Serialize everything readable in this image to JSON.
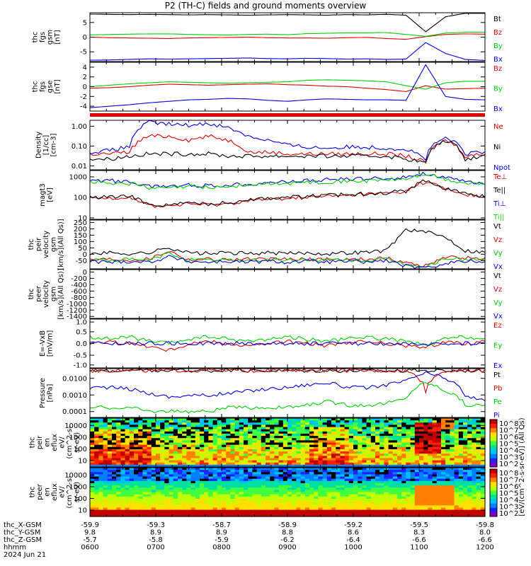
{
  "title": "P2 (TH-C) fields and ground moments overview",
  "colors": {
    "black": "#000000",
    "red": "#e00000",
    "green": "#00d000",
    "blue": "#0000e0"
  },
  "panels": [
    {
      "id": "fgs-gsm",
      "ylabel": [
        "thc",
        "fgs",
        "gsm",
        "[nT]"
      ],
      "yticks": [
        "5",
        "0",
        "-5"
      ],
      "legend": [
        "Bt",
        "Bz",
        "By",
        "Bx"
      ]
    },
    {
      "id": "fgs-gse",
      "ylabel": [
        "thc",
        "fgs",
        "gse",
        "[nT]"
      ],
      "yticks": [
        "4",
        "2",
        "0",
        "-2",
        "-4"
      ],
      "legend": [
        "Bz",
        "By",
        "Bx"
      ]
    },
    {
      "id": "density",
      "ylabel": [
        "Density",
        "[1/cc]",
        "[cm-3]"
      ],
      "yticks": [
        "1.00",
        "0.10",
        "0.01"
      ],
      "legend": [
        "Ne",
        "Ni",
        "Npot"
      ]
    },
    {
      "id": "temp",
      "ylabel": [
        "magt3",
        "[eV]"
      ],
      "yticks": [
        "1000",
        "100",
        "10"
      ],
      "legend": [
        "Te⊥",
        "Te||",
        "Ti⊥",
        "Ti||"
      ]
    },
    {
      "id": "peir-vel",
      "ylabel": [
        "thc",
        "peir",
        "velocity",
        "gsm",
        "[km/s](All Qs)]"
      ],
      "yticks": [
        "250",
        "200",
        "150",
        "100",
        "50",
        "0",
        "-50"
      ],
      "legend": [
        "Vt",
        "Vz",
        "Vy",
        "Vx"
      ]
    },
    {
      "id": "peer-vel",
      "ylabel": [
        "thc",
        "peer",
        "velocity",
        "gsm",
        "[km/s](All Qs)]"
      ],
      "yticks": [
        "0",
        "-200",
        "-400",
        "-600",
        "-800",
        "-1000",
        "-1200",
        "-1400"
      ],
      "legend": [
        "Vt",
        "Vz",
        "Vy",
        "Vx"
      ]
    },
    {
      "id": "efield",
      "ylabel": [
        "E=-VxB",
        "[mV/m]"
      ],
      "yticks": [
        "1.0",
        "0.5",
        "0.0",
        "-0.5",
        "-1.0"
      ],
      "legend": [
        "Ez",
        "Ey",
        "Ex"
      ]
    },
    {
      "id": "pressure",
      "ylabel": [
        "Pressure",
        "[nPa]"
      ],
      "yticks": [
        "0.0100",
        "0.0010",
        "0.0001"
      ],
      "legend": [
        "Pt",
        "Pb",
        "Pe",
        "Pi"
      ]
    },
    {
      "id": "peir-spec",
      "ylabel": [
        "thc",
        "peir",
        "en",
        "eflux",
        "eV/",
        "(cm^2-s-",
        "sr-eV)"
      ],
      "yticks": [
        "10000",
        "1000",
        "100",
        "10"
      ],
      "legend": []
    },
    {
      "id": "peer-spec",
      "ylabel": [
        "thc",
        "peer",
        "en",
        "eflux",
        "eV/",
        "(cm^2-s-",
        "sr-eV)"
      ],
      "yticks": [
        "10000",
        "1000",
        "100",
        "10"
      ],
      "legend": []
    }
  ],
  "colorbar": {
    "label": "[eV/(cm^2-s-sr-eV)] (All Qs)",
    "ticks1": [
      "10^8",
      "10^7",
      "10^6",
      "10^5",
      "10^4",
      "10^3",
      "10^2"
    ],
    "ticks2": [
      "10^8",
      "10^7",
      "10^6",
      "10^5",
      "10^4",
      "10^3",
      "10^2"
    ]
  },
  "ephemeris": {
    "rows": [
      {
        "label": "thc_X-GSM",
        "values": [
          "-59.9",
          "-59.3",
          "-58.7",
          "-58.9",
          "-59.2",
          "-59.5",
          "-59.8"
        ]
      },
      {
        "label": "thc_Y-GSM",
        "values": [
          "9.8",
          "8.9",
          "8.9",
          "8.8",
          "8.6",
          "8.3",
          "8.0"
        ]
      },
      {
        "label": "thc_Z-GSM",
        "values": [
          "-5.7",
          "-5.8",
          "-5.9",
          "-6.2",
          "-6.4",
          "-6.6",
          "-6.6"
        ]
      },
      {
        "label": "hhmm",
        "values": [
          "0600",
          "0700",
          "0800",
          "0900",
          "1000",
          "1100",
          "1200"
        ]
      }
    ],
    "date": "2024 Jun 21"
  },
  "chart_data": {
    "type": "line",
    "time_axis": {
      "range": [
        "0600",
        "1200"
      ],
      "ticks": [
        "0600",
        "0700",
        "0800",
        "0900",
        "1000",
        "1100",
        "1200"
      ],
      "date": "2024 Jun 21"
    },
    "panels": [
      {
        "id": "fgs-gsm",
        "ylim": [
          -9,
          9
        ],
        "series": [
          {
            "name": "Bt",
            "values": [
              8.5,
              8.4,
              8.3,
              8.4,
              8.3,
              8.2,
              8.3,
              8.2,
              8.1,
              8.2,
              8.3,
              8.2,
              8.1,
              8.3,
              8.2,
              8.4,
              8.1,
              2,
              7.5,
              8.8,
              8.8
            ]
          },
          {
            "name": "Bz",
            "values": [
              0,
              -0.2,
              -0.3,
              -0.4,
              -0.5,
              -0.3,
              -0.2,
              -0.1,
              0,
              -0.2,
              -0.3,
              -0.3,
              -0.4,
              -0.2,
              -0.1,
              -0.5,
              -0.8,
              0.2,
              1,
              1.2,
              1.1
            ]
          },
          {
            "name": "By",
            "values": [
              0.8,
              1,
              1.1,
              1.2,
              1.2,
              1,
              0.9,
              0.8,
              1,
              1.1,
              0.9,
              1.3,
              1.4,
              1.6,
              1.6,
              1.7,
              1,
              0.3,
              1.5,
              1.8,
              1.8
            ]
          },
          {
            "name": "Bx",
            "values": [
              -8.5,
              -8.4,
              -8.2,
              -8,
              -8.1,
              -8,
              -7.9,
              -7.8,
              -7.7,
              -7.9,
              -8,
              -7.8,
              -7.9,
              -8.1,
              -8,
              -8.2,
              -8.1,
              -2,
              -6,
              -8.2,
              -8.6
            ]
          }
        ]
      },
      {
        "id": "fgs-gse",
        "ylim": [
          -5,
          5
        ],
        "series": [
          {
            "name": "Bz",
            "values": [
              -0.3,
              -0.2,
              0,
              0.3,
              0.5,
              0.4,
              0.3,
              0.4,
              0.5,
              0.6,
              0.4,
              0.3,
              0.1,
              0,
              -0.3,
              -0.6,
              -1,
              0.2,
              -0.5,
              -0.4,
              -0.3
            ]
          },
          {
            "name": "By",
            "values": [
              0,
              0.3,
              0.6,
              0.8,
              1,
              0.9,
              0.8,
              0.7,
              0.8,
              0.9,
              1,
              1.3,
              1.4,
              1.3,
              1.2,
              1,
              0.2,
              -0.5,
              0.8,
              1.1,
              1.1
            ]
          },
          {
            "name": "Bx",
            "values": [
              -4.3,
              -4,
              -3.7,
              -3.3,
              -3,
              -2.7,
              -2.6,
              -2.4,
              -2.5,
              -2.8,
              -3,
              -2.7,
              -2.5,
              -2.6,
              -2.7,
              -2.7,
              -2.8,
              4.5,
              -2,
              -2.6,
              -2.7
            ]
          }
        ]
      },
      {
        "id": "density",
        "scale": "log",
        "ylim": [
          0.01,
          1.5
        ],
        "series": [
          {
            "name": "Ne",
            "values": [
              0.05,
              0.05,
              0.06,
              0.3,
              0.3,
              0.2,
              0.3,
              0.2,
              0.06,
              0.06,
              0.05,
              0.05,
              0.05,
              0.05,
              0.05,
              0.05,
              0.04,
              0.02,
              0.2,
              0.04,
              0.05
            ]
          },
          {
            "name": "Ni",
            "values": [
              0.03,
              0.03,
              0.04,
              0.05,
              0.05,
              0.05,
              0.05,
              0.04,
              0.04,
              0.04,
              0.04,
              0.04,
              0.04,
              0.04,
              0.04,
              0.04,
              0.03,
              0.02,
              0.2,
              0.03,
              0.04
            ]
          },
          {
            "name": "Npot",
            "values": [
              0.06,
              0.07,
              0.1,
              1.2,
              1,
              0.9,
              1.1,
              0.7,
              0.3,
              0.2,
              0.12,
              0.1,
              0.09,
              0.1,
              0.1,
              0.09,
              0.08,
              0.03,
              0.25,
              0.05,
              0.06
            ]
          }
        ]
      },
      {
        "id": "temp",
        "scale": "log",
        "ylim": [
          10,
          1600
        ],
        "series": [
          {
            "name": "Te⊥",
            "values": [
              90,
              95,
              100,
              40,
              40,
              50,
              45,
              50,
              70,
              80,
              90,
              100,
              110,
              120,
              140,
              150,
              180,
              500,
              220,
              130,
              100
            ]
          },
          {
            "name": "Te||",
            "values": [
              100,
              100,
              110,
              45,
              45,
              55,
              50,
              55,
              80,
              90,
              100,
              110,
              120,
              130,
              150,
              160,
              190,
              550,
              240,
              140,
              110
            ]
          },
          {
            "name": "Ti⊥",
            "values": [
              600,
              550,
              500,
              300,
              320,
              350,
              330,
              350,
              400,
              450,
              500,
              550,
              600,
              650,
              700,
              700,
              800,
              1200,
              700,
              500,
              450
            ]
          },
          {
            "name": "Ti||",
            "values": [
              500,
              450,
              420,
              250,
              260,
              300,
              280,
              300,
              350,
              400,
              420,
              480,
              500,
              520,
              550,
              600,
              650,
              1100,
              600,
              420,
              380
            ]
          }
        ]
      },
      {
        "id": "peir-vel",
        "ylim": [
          -60,
          260
        ],
        "series": [
          {
            "name": "Vt",
            "values": [
              40,
              45,
              40,
              45,
              80,
              45,
              40,
              45,
              40,
              45,
              40,
              45,
              40,
              45,
              50,
              60,
              200,
              180,
              150,
              60,
              50
            ]
          },
          {
            "name": "Vz",
            "values": [
              0,
              5,
              0,
              5,
              60,
              0,
              5,
              0,
              5,
              0,
              5,
              0,
              5,
              0,
              5,
              10,
              -20,
              -40,
              20,
              10,
              5
            ]
          },
          {
            "name": "Vy",
            "values": [
              0,
              -5,
              0,
              -5,
              40,
              0,
              -5,
              0,
              -5,
              0,
              -5,
              0,
              -5,
              0,
              -5,
              0,
              -30,
              -50,
              10,
              0,
              0
            ]
          },
          {
            "name": "Vx",
            "values": [
              -10,
              -15,
              -10,
              -15,
              20,
              -10,
              -15,
              -10,
              -15,
              -10,
              -15,
              -10,
              -15,
              -10,
              -15,
              -5,
              -40,
              -60,
              -20,
              -10,
              -10
            ]
          }
        ]
      },
      {
        "id": "efield",
        "ylim": [
          -1.1,
          1.1
        ],
        "series": [
          {
            "name": "Ez",
            "values": [
              0,
              0.1,
              0,
              -0.1,
              -0.3,
              0,
              0.1,
              0,
              -0.1,
              0,
              0.1,
              0,
              -0.1,
              0,
              0.1,
              0,
              -0.1,
              -0.2,
              0.1,
              0,
              0.1
            ]
          },
          {
            "name": "Ey",
            "values": [
              0.3,
              0.2,
              0.3,
              0.1,
              0,
              0.2,
              0.3,
              0.2,
              0.1,
              0.2,
              0.3,
              0.2,
              0.1,
              0.2,
              0.3,
              0.2,
              0.1,
              -0.1,
              0.2,
              0.3,
              0.2
            ]
          },
          {
            "name": "Ex",
            "values": [
              0,
              0,
              0,
              0,
              0,
              0,
              0,
              0,
              0,
              0,
              0,
              0,
              0,
              0,
              0,
              0,
              0,
              -0.1,
              0,
              0,
              0
            ]
          }
        ]
      },
      {
        "id": "pressure",
        "scale": "log",
        "ylim": [
          0.0001,
          0.025
        ],
        "series": [
          {
            "name": "Pt",
            "values": [
              0.02,
              0.02,
              0.02,
              0.02,
              0.02,
              0.02,
              0.02,
              0.02,
              0.02,
              0.02,
              0.02,
              0.02,
              0.02,
              0.02,
              0.02,
              0.02,
              0.02,
              0.02,
              0.02,
              0.02,
              0.02
            ]
          },
          {
            "name": "Pb",
            "values": [
              0.02,
              0.02,
              0.02,
              0.02,
              0.02,
              0.02,
              0.02,
              0.02,
              0.02,
              0.02,
              0.02,
              0.02,
              0.02,
              0.02,
              0.02,
              0.02,
              0.02,
              0.002,
              0.02,
              0.02,
              0.02
            ]
          },
          {
            "name": "Pe",
            "values": [
              0.0003,
              0.0003,
              0.0003,
              0.0002,
              0.0002,
              0.0002,
              0.0002,
              0.0003,
              0.0003,
              0.0003,
              0.0003,
              0.0004,
              0.0006,
              0.0004,
              0.0004,
              0.0005,
              0.0008,
              0.005,
              0.002,
              0.0004,
              0.0004
            ]
          },
          {
            "name": "Pi",
            "values": [
              0.003,
              0.003,
              0.0025,
              0.0015,
              0.001,
              0.0012,
              0.0012,
              0.0015,
              0.002,
              0.0025,
              0.003,
              0.004,
              0.005,
              0.003,
              0.0028,
              0.004,
              0.006,
              0.015,
              0.008,
              0.001,
              0.0008
            ]
          }
        ]
      }
    ]
  }
}
